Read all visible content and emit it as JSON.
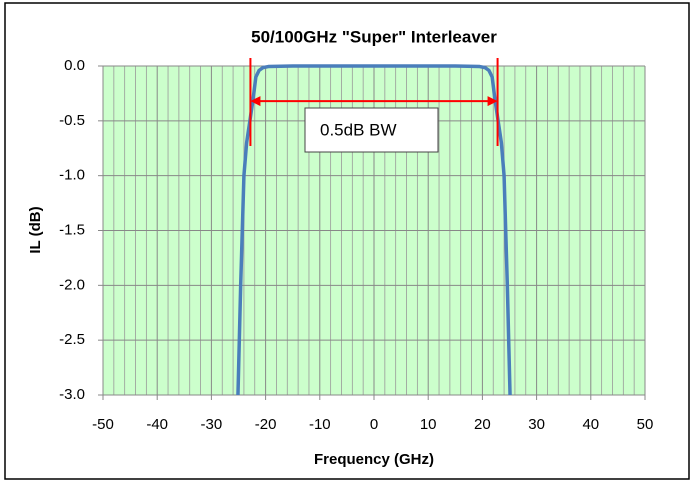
{
  "chart_data": {
    "type": "line",
    "title": "50/100GHz \"Super\" Interleaver",
    "x_label": "Frequency (GHz)",
    "y_label": "IL (dB)",
    "series": [
      {
        "color": "#4a7ebb",
        "x": [
          -25.1,
          -24.6,
          -24.0,
          -23.5,
          -22.9,
          -22.3,
          -21.8,
          -21.2,
          -20.5,
          -19.5,
          -15,
          0,
          15,
          19.5,
          20.5,
          21.2,
          21.8,
          22.3,
          22.9,
          23.5,
          24.0,
          24.6,
          25.1
        ],
        "values": [
          -3.0,
          -2.0,
          -1.0,
          -0.7,
          -0.5,
          -0.3,
          -0.1,
          -0.04,
          -0.015,
          -0.005,
          0,
          0,
          0,
          -0.005,
          -0.015,
          -0.04,
          -0.1,
          -0.3,
          -0.5,
          -0.7,
          -1.0,
          -2.0,
          -3.0
        ]
      }
    ],
    "xlim": [
      -50,
      50
    ],
    "xticks": [
      -50,
      -40,
      -30,
      -20,
      -10,
      0,
      10,
      20,
      30,
      40,
      50
    ],
    "xminorticks": [
      -48,
      -46,
      -44,
      -42,
      -38,
      -36,
      -34,
      -32,
      -28,
      -26,
      -24,
      -22,
      -18,
      -16,
      -14,
      -12,
      -8,
      -6,
      -4,
      -2,
      2,
      4,
      6,
      8,
      12,
      14,
      16,
      18,
      22,
      24,
      26,
      28,
      32,
      34,
      36,
      38,
      42,
      44,
      46,
      48
    ],
    "ylim": [
      -3.0,
      0.0
    ],
    "yticks": [
      {
        "value": 0,
        "label": "0.0"
      },
      -0.5,
      {
        "value": -1,
        "label": "-1.0"
      },
      -1.5,
      {
        "value": -2,
        "label": "-2.0"
      },
      -2.5,
      {
        "value": -3,
        "label": "-3.0"
      }
    ],
    "grid": true,
    "annotation": {
      "text": "0.5dB BW",
      "x": [
        -22.8,
        22.8
      ],
      "y": -0.32,
      "color": "#ff0000"
    }
  }
}
